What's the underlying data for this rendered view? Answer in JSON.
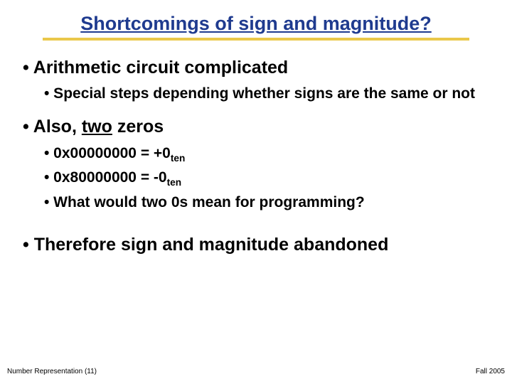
{
  "title": "Shortcomings of sign and magnitude?",
  "colors": {
    "title_color": "#1f3b8f",
    "underline_bar": "#eac84a",
    "text": "#000000",
    "background": "#ffffff"
  },
  "bullets": {
    "l1_a": "• Arithmetic circuit complicated",
    "l2_a": "• Special steps depending whether signs are the same or not",
    "l1_b_prefix": "• Also, ",
    "l1_b_underlined": "two",
    "l1_b_suffix": " zeros",
    "l2_b1_prefix": "•  0x00000000 = +0",
    "l2_b1_sub": "ten",
    "l2_b2_prefix": "•  0x80000000 = -0",
    "l2_b2_sub": "ten",
    "l2_b3": "• What would two 0s mean for programming?",
    "l1_c": "• Therefore sign and magnitude abandoned"
  },
  "footer": {
    "left": "Number Representation (11)",
    "right": "Fall  2005"
  }
}
